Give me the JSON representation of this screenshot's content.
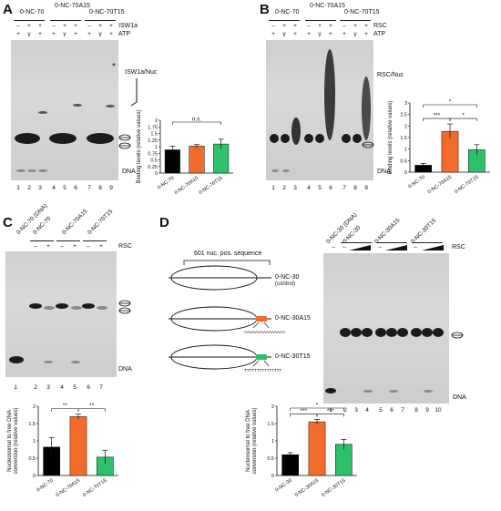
{
  "panelA": {
    "letter": "A",
    "lane_groups": [
      "0-NC-70",
      "0-NC-70A15",
      "0-NC-70T15"
    ],
    "row1_label": "ISW1a",
    "row2_label": "ATP",
    "row1_signs": [
      "–",
      "+",
      "+",
      "–",
      "+",
      "+",
      "–",
      "+",
      "+"
    ],
    "row2_signs": [
      "+",
      "γ",
      "+",
      "+",
      "γ",
      "+",
      "+",
      "γ",
      "+"
    ],
    "complex_label": "ISW1a/Nuc",
    "dna_label": "DNA",
    "star": "*",
    "lanes": [
      "1",
      "2",
      "3",
      "4",
      "5",
      "6",
      "7",
      "8",
      "9"
    ]
  },
  "panelB": {
    "letter": "B",
    "lane_groups": [
      "0-NC-70",
      "0-NC-70A15",
      "0-NC-70T15"
    ],
    "row1_label": "RSC",
    "row2_label": "ATP",
    "row1_signs": [
      "–",
      "+",
      "+",
      "–",
      "+",
      "+",
      "–",
      "+",
      "+"
    ],
    "row2_signs": [
      "+",
      "γ",
      "+",
      "+",
      "γ",
      "+",
      "+",
      "γ",
      "+"
    ],
    "complex_label": "RSC/Nuc",
    "dna_label": "DNA",
    "lanes": [
      "1",
      "2",
      "3",
      "4",
      "5",
      "6",
      "7",
      "8",
      "9"
    ]
  },
  "panelC": {
    "letter": "C",
    "lane_groups": [
      "0-NC-70 (DNA)",
      "0-NC-70",
      "0-NC-70A15",
      "0-NC-70T15"
    ],
    "rsc_label": "RSC",
    "signs": [
      "–",
      "+",
      "–",
      "+",
      "–",
      "+"
    ],
    "dna_label": "DNA",
    "lanes": [
      "1",
      "2",
      "3",
      "4",
      "5",
      "6",
      "7"
    ]
  },
  "panelD": {
    "letter": "D",
    "lane_groups": [
      "0-NC-30 (DNA)",
      "0-NC-30",
      "0-NC-30A15",
      "0-NC-30T15"
    ],
    "rsc_label": "RSC",
    "signs": [
      "–",
      "–",
      "–",
      "–"
    ],
    "dna_label": "DNA",
    "lanes": [
      "1",
      "2",
      "3",
      "4",
      "5",
      "6",
      "7",
      "8",
      "9",
      "10"
    ],
    "schematic": {
      "header": "601 nuc. pos. sequence",
      "constructs": [
        {
          "label": "0-NC-30",
          "sub": "(control)",
          "tail": ""
        },
        {
          "label": "0-NC-30A15",
          "sub": "",
          "tail": "AAAAAAAAAAAAAAA"
        },
        {
          "label": "0-NC-30T15",
          "sub": "",
          "tail": "TTTTTTTTTTTTTTT"
        }
      ]
    }
  },
  "chart_data": [
    {
      "panel": "A",
      "type": "bar",
      "categories": [
        "0-NC-70",
        "0-NC-70A15",
        "0-NC-70T15"
      ],
      "values": [
        0.88,
        1.02,
        1.1
      ],
      "errors": [
        0.14,
        0.06,
        0.18
      ],
      "colors": [
        "#000000",
        "#f26b2a",
        "#2ec06a"
      ],
      "ylabel": "Binding levels (relative values)",
      "ylim": [
        0,
        2
      ],
      "yticks": [
        "0",
        "0.25",
        "0.5",
        "0.75",
        "1",
        "1.25",
        "1.5",
        "1.75",
        "2"
      ],
      "significance": [
        {
          "from": 0,
          "to": 2,
          "label": "n.s."
        }
      ]
    },
    {
      "panel": "B",
      "type": "bar",
      "categories": [
        "0-NC-70",
        "0-NC-70A15",
        "0-NC-70T15"
      ],
      "values": [
        0.3,
        1.77,
        0.97
      ],
      "errors": [
        0.08,
        0.32,
        0.22
      ],
      "colors": [
        "#000000",
        "#f26b2a",
        "#2ec06a"
      ],
      "ylabel": "Binding levels (relative values)",
      "ylim": [
        0,
        3
      ],
      "yticks": [
        "0",
        "0.5",
        "1",
        "1.5",
        "2",
        "2.5",
        "3"
      ],
      "significance": [
        {
          "from": 0,
          "to": 1,
          "label": "***"
        },
        {
          "from": 1,
          "to": 2,
          "label": "*"
        },
        {
          "from": 0,
          "to": 2,
          "label": "*"
        }
      ]
    },
    {
      "panel": "C",
      "type": "bar",
      "categories": [
        "0-NC-70",
        "0-NC-70A15",
        "0-NC-70T15"
      ],
      "values": [
        0.82,
        1.7,
        0.53
      ],
      "errors": [
        0.27,
        0.07,
        0.2
      ],
      "colors": [
        "#000000",
        "#f26b2a",
        "#2ec06a"
      ],
      "ylabel": "Nucleosomal to free DNA conversion (relative values)",
      "ylim": [
        0,
        2
      ],
      "yticks": [
        "0",
        "0.5",
        "1",
        "1.5",
        "2"
      ],
      "significance": [
        {
          "from": 0,
          "to": 1,
          "label": "**"
        },
        {
          "from": 1,
          "to": 2,
          "label": "**"
        }
      ]
    },
    {
      "panel": "D",
      "type": "bar",
      "categories": [
        "0-NC-30",
        "0-NC-30A15",
        "0-NC-30T15"
      ],
      "values": [
        0.6,
        1.55,
        0.9
      ],
      "errors": [
        0.06,
        0.07,
        0.14
      ],
      "colors": [
        "#000000",
        "#f26b2a",
        "#2ec06a"
      ],
      "ylabel": "Nucleosomal to free DNA conversion (relative values)",
      "ylim": [
        0,
        2
      ],
      "yticks": [
        "0",
        "0.5",
        "1",
        "1.5",
        "2"
      ],
      "significance": [
        {
          "from": 0,
          "to": 1,
          "label": "***"
        },
        {
          "from": 1,
          "to": 2,
          "label": "***"
        },
        {
          "from": 0,
          "to": 2,
          "label": "*"
        }
      ]
    }
  ]
}
